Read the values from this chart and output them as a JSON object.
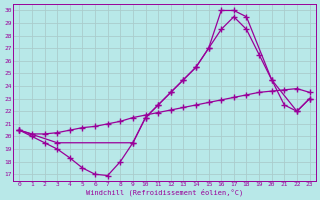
{
  "xlabel": "Windchill (Refroidissement éolien,°C)",
  "line_color": "#990099",
  "bg_color": "#b8e8e8",
  "grid_color": "#aacccc",
  "xlim": [
    -0.5,
    23.5
  ],
  "ylim": [
    16.5,
    30.5
  ],
  "xticks": [
    0,
    1,
    2,
    3,
    4,
    5,
    6,
    7,
    8,
    9,
    10,
    11,
    12,
    13,
    14,
    15,
    16,
    17,
    18,
    19,
    20,
    21,
    22,
    23
  ],
  "yticks": [
    17,
    18,
    19,
    20,
    21,
    22,
    23,
    24,
    25,
    26,
    27,
    28,
    29,
    30
  ],
  "line1_x": [
    0,
    1,
    2,
    3,
    4,
    5,
    6,
    7,
    8,
    9,
    10,
    11,
    12,
    13,
    14,
    15,
    16,
    17,
    18,
    19,
    20,
    21,
    22,
    23
  ],
  "line1_y": [
    20.5,
    20.0,
    19.5,
    19.0,
    18.3,
    17.5,
    17.0,
    16.9,
    18.0,
    19.5,
    21.5,
    22.5,
    23.5,
    24.5,
    25.5,
    27.0,
    28.5,
    29.5,
    28.5,
    26.5,
    24.5,
    22.5,
    22.0,
    23.0
  ],
  "line2_x": [
    0,
    3,
    9,
    10,
    11,
    12,
    13,
    14,
    15,
    16,
    17,
    18,
    20,
    22,
    23
  ],
  "line2_y": [
    20.5,
    19.5,
    19.5,
    21.5,
    22.5,
    23.5,
    24.5,
    25.5,
    27.0,
    30.0,
    30.0,
    29.5,
    24.5,
    22.0,
    23.0
  ],
  "line3_x": [
    0,
    1,
    2,
    3,
    4,
    5,
    6,
    7,
    8,
    9,
    10,
    11,
    12,
    13,
    14,
    15,
    16,
    17,
    18,
    19,
    20,
    21,
    22,
    23
  ],
  "line3_y": [
    20.5,
    20.2,
    20.2,
    20.3,
    20.5,
    20.7,
    20.8,
    21.0,
    21.2,
    21.5,
    21.7,
    21.9,
    22.1,
    22.3,
    22.5,
    22.7,
    22.9,
    23.1,
    23.3,
    23.5,
    23.6,
    23.7,
    23.8,
    23.5
  ]
}
